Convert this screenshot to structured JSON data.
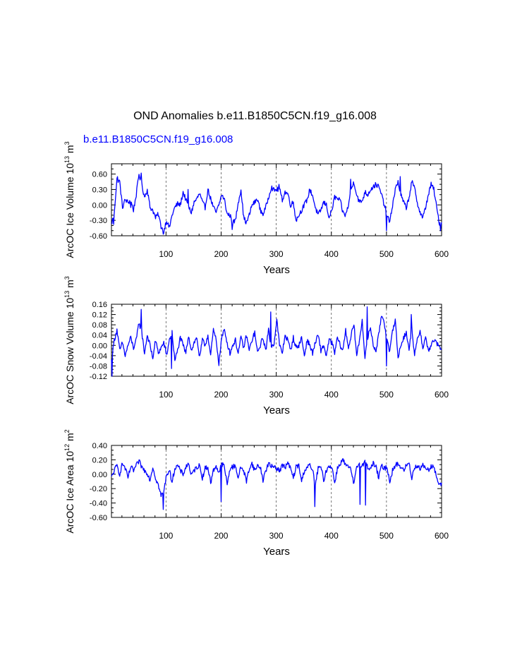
{
  "figure": {
    "title": "OND Anomalies b.e11.B1850C5CN.f19_g16.008",
    "run_label": "b.e11.B1850C5CN.f19_g16.008",
    "line_color": "#0000ff"
  },
  "chart_data": [
    {
      "type": "line",
      "name": "ice-volume",
      "xlabel": "Years",
      "ylabel": "ArcOC Ice Volume 10^13 m^3",
      "ylabel_main": "ArcOC Ice Volume 10",
      "ylabel_exp": "13",
      "ylabel_unit": "m",
      "ylabel_unit_exp": "3",
      "xlim": [
        1,
        600
      ],
      "ylim": [
        -0.6,
        0.8
      ],
      "xticks": [
        100,
        200,
        300,
        400,
        500,
        600
      ],
      "yticks": [
        -0.6,
        -0.3,
        0.0,
        0.3,
        0.6
      ],
      "ytick_labels": [
        "-0.60",
        "-0.30",
        "0.00",
        "0.30",
        "0.60"
      ],
      "vlines": [
        100,
        200,
        300,
        400,
        500
      ],
      "series": [
        {
          "name": "b.e11.B1850C5CN.f19_g16.008",
          "x_step": 5,
          "values": [
            -0.38,
            -0.15,
            0.5,
            0.45,
            -0.05,
            0.1,
            0.05,
            0.08,
            -0.1,
            0.2,
            0.6,
            0.4,
            0.15,
            0.3,
            -0.05,
            -0.1,
            -0.25,
            -0.18,
            -0.42,
            -0.5,
            -0.3,
            -0.45,
            -0.2,
            -0.05,
            0.02,
            0.0,
            0.25,
            0.1,
            -0.05,
            -0.15,
            0.05,
            0.12,
            0.22,
            0.05,
            -0.05,
            0.3,
            0.12,
            -0.05,
            -0.15,
            0.0,
            0.2,
            0.1,
            -0.18,
            -0.2,
            -0.35,
            -0.3,
            0.05,
            0.3,
            -0.25,
            -0.35,
            -0.2,
            0.0,
            0.05,
            0.12,
            -0.1,
            -0.18,
            -0.05,
            0.15,
            0.35,
            0.28,
            0.3,
            0.3,
            0.1,
            0.25,
            0.22,
            0.0,
            0.05,
            -0.3,
            -0.2,
            -0.1,
            0.0,
            0.1,
            0.3,
            0.18,
            -0.05,
            -0.2,
            -0.1,
            0.05,
            0.0,
            -0.25,
            -0.1,
            0.15,
            0.12,
            0.08,
            -0.15,
            -0.2,
            0.0,
            0.3,
            0.45,
            0.2,
            0.05,
            0.08,
            0.25,
            0.2,
            0.3,
            0.35,
            0.4,
            0.35,
            0.2,
            0.0,
            -0.18,
            -0.35,
            0.0,
            0.3,
            0.45,
            0.2,
            0.05,
            -0.05,
            0.15,
            0.45,
            0.32,
            0.05,
            -0.15,
            -0.25,
            -0.05,
            0.2,
            0.4,
            0.3,
            -0.05,
            -0.35
          ],
          "extrema": [
            [
              5,
              -0.38
            ],
            [
              12,
              0.55
            ],
            [
              36,
              -0.05
            ],
            [
              55,
              0.62
            ],
            [
              95,
              -0.57
            ],
            [
              140,
              0.3
            ],
            [
              220,
              -0.48
            ],
            [
              305,
              0.4
            ],
            [
              435,
              0.5
            ],
            [
              500,
              -0.5
            ],
            [
              525,
              0.55
            ],
            [
              598,
              -0.5
            ]
          ]
        }
      ]
    },
    {
      "type": "line",
      "name": "snow-volume",
      "xlabel": "Years",
      "ylabel": "ArcOC Snow Volume 10^13 m^3",
      "ylabel_main": "ArcOC Snow Volume 10",
      "ylabel_exp": "13",
      "ylabel_unit": "m",
      "ylabel_unit_exp": "3",
      "xlim": [
        1,
        600
      ],
      "ylim": [
        -0.12,
        0.16
      ],
      "xticks": [
        100,
        200,
        300,
        400,
        500,
        600
      ],
      "yticks": [
        -0.12,
        -0.08,
        -0.04,
        0.0,
        0.04,
        0.08,
        0.12,
        0.16
      ],
      "ytick_labels": [
        "-0.12",
        "-0.08",
        "-0.04",
        "0.00",
        "0.04",
        "0.08",
        "0.12",
        "0.16"
      ],
      "vlines": [
        100,
        200,
        300,
        400,
        500
      ],
      "series": [
        {
          "name": "b.e11.B1850C5CN.f19_g16.008",
          "x_step": 5,
          "values": [
            -0.06,
            0.02,
            0.06,
            -0.02,
            0.01,
            -0.04,
            0.0,
            0.03,
            -0.01,
            0.02,
            0.09,
            0.05,
            -0.03,
            0.04,
            0.0,
            -0.05,
            0.02,
            -0.03,
            -0.01,
            0.01,
            -0.04,
            0.02,
            0.05,
            -0.06,
            -0.02,
            0.03,
            0.0,
            -0.03,
            0.04,
            -0.02,
            0.01,
            0.03,
            -0.05,
            0.02,
            0.0,
            0.04,
            -0.04,
            0.06,
            0.02,
            -0.07,
            0.03,
            0.06,
            0.01,
            -0.03,
            0.0,
            0.02,
            -0.03,
            0.03,
            -0.01,
            0.04,
            -0.02,
            0.02,
            0.05,
            -0.03,
            0.0,
            0.03,
            -0.02,
            0.06,
            -0.01,
            0.01,
            0.1,
            0.0,
            -0.03,
            0.04,
            0.02,
            -0.02,
            0.03,
            -0.01,
            0.0,
            0.03,
            -0.04,
            0.02,
            0.0,
            -0.03,
            0.01,
            0.04,
            -0.02,
            0.0,
            -0.04,
            0.02,
            0.01,
            -0.03,
            0.03,
            0.0,
            -0.02,
            0.06,
            -0.01,
            0.04,
            0.08,
            -0.04,
            0.02,
            0.1,
            -0.05,
            0.03,
            0.07,
            0.0,
            -0.02,
            0.04,
            0.12,
            0.09,
            0.02,
            -0.03,
            0.06,
            0.1,
            -0.05,
            0.0,
            0.03,
            0.05,
            -0.02,
            0.07,
            -0.04,
            0.02,
            0.06,
            -0.01,
            0.03,
            -0.02,
            0.0,
            0.02,
            0.01,
            -0.01
          ],
          "extrema": [
            [
              2,
              -0.12
            ],
            [
              55,
              0.14
            ],
            [
              110,
              -0.09
            ],
            [
              290,
              0.13
            ],
            [
              465,
              0.15
            ],
            [
              500,
              -0.08
            ],
            [
              545,
              0.12
            ]
          ]
        }
      ]
    },
    {
      "type": "line",
      "name": "ice-area",
      "xlabel": "Years",
      "ylabel": "ArcOC Ice Area 10^12 m^2",
      "ylabel_main": "ArcOC Ice Area 10",
      "ylabel_exp": "12",
      "ylabel_unit": "m",
      "ylabel_unit_exp": "2",
      "xlim": [
        1,
        600
      ],
      "ylim": [
        -0.6,
        0.4
      ],
      "xticks": [
        100,
        200,
        300,
        400,
        500,
        600
      ],
      "yticks": [
        -0.6,
        -0.4,
        -0.2,
        0.0,
        0.2,
        0.4
      ],
      "ytick_labels": [
        "-0.60",
        "-0.40",
        "-0.20",
        "0.00",
        "0.20",
        "0.40"
      ],
      "vlines": [
        100,
        200,
        300,
        400,
        500
      ],
      "series": [
        {
          "name": "b.e11.B1850C5CN.f19_g16.008",
          "x_step": 5,
          "values": [
            -0.05,
            0.05,
            0.12,
            0.0,
            0.15,
            0.08,
            -0.05,
            0.1,
            0.05,
            0.12,
            0.18,
            0.1,
            0.05,
            0.02,
            -0.08,
            0.1,
            -0.05,
            -0.15,
            -0.3,
            -0.25,
            0.0,
            0.05,
            -0.1,
            0.08,
            0.12,
            0.05,
            0.0,
            0.1,
            0.15,
            -0.02,
            0.05,
            0.1,
            0.12,
            -0.05,
            0.08,
            0.1,
            -0.12,
            0.05,
            0.12,
            0.02,
            0.15,
            0.1,
            -0.15,
            0.08,
            0.1,
            0.12,
            -0.05,
            0.1,
            0.05,
            -0.1,
            0.08,
            0.15,
            0.05,
            0.12,
            0.1,
            -0.08,
            0.05,
            0.15,
            0.1,
            0.12,
            0.08,
            0.05,
            0.12,
            0.1,
            0.15,
            0.08,
            -0.05,
            0.1,
            0.12,
            -0.1,
            0.05,
            0.1,
            0.12,
            0.05,
            -0.15,
            0.08,
            0.1,
            -0.08,
            0.05,
            0.12,
            0.1,
            -0.12,
            0.08,
            0.15,
            0.2,
            0.12,
            0.1,
            0.05,
            -0.15,
            0.1,
            0.15,
            0.12,
            0.18,
            0.1,
            0.08,
            0.15,
            0.1,
            -0.05,
            0.12,
            0.08,
            0.1,
            -0.1,
            0.05,
            0.12,
            0.15,
            0.1,
            0.05,
            0.12,
            0.15,
            -0.05,
            0.1,
            0.12,
            0.08,
            0.12,
            0.1,
            0.05,
            0.12,
            0.1,
            -0.05,
            -0.15
          ],
          "extrema": [
            [
              95,
              -0.49
            ],
            [
              200,
              -0.38
            ],
            [
              370,
              -0.45
            ],
            [
              452,
              -0.42
            ],
            [
              462,
              -0.43
            ]
          ]
        }
      ]
    }
  ]
}
